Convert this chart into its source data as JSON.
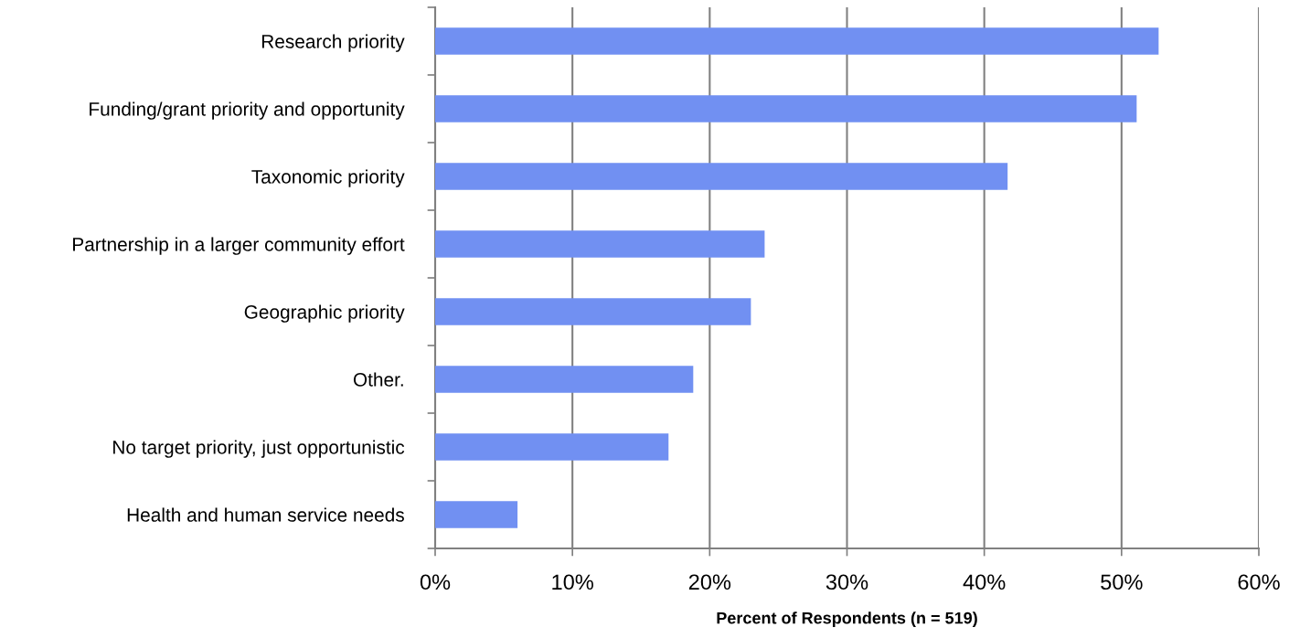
{
  "chart_data": {
    "type": "bar",
    "orientation": "horizontal",
    "xlabel": "Percent of Respondents (n = 519)",
    "categories": [
      "Research priority",
      "Funding/grant priority and opportunity",
      "Taxonomic priority",
      "Partnership in a larger community effort",
      "Geographic priority",
      "Other.",
      "No target priority, just opportunistic",
      "Health and human service needs"
    ],
    "values": [
      52.7,
      51.1,
      41.7,
      24.0,
      23.0,
      18.8,
      17.0,
      6.0
    ],
    "color": "#7190f2",
    "xlim": [
      0,
      60
    ],
    "xticks": [
      {
        "value": 0,
        "label": "0%"
      },
      {
        "value": 10,
        "label": "10%"
      },
      {
        "value": 20,
        "label": "20%"
      },
      {
        "value": 30,
        "label": "30%"
      },
      {
        "value": 40,
        "label": "40%"
      },
      {
        "value": 50,
        "label": "50%"
      },
      {
        "value": 60,
        "label": "60%"
      }
    ],
    "grid": "x",
    "legend": false
  }
}
